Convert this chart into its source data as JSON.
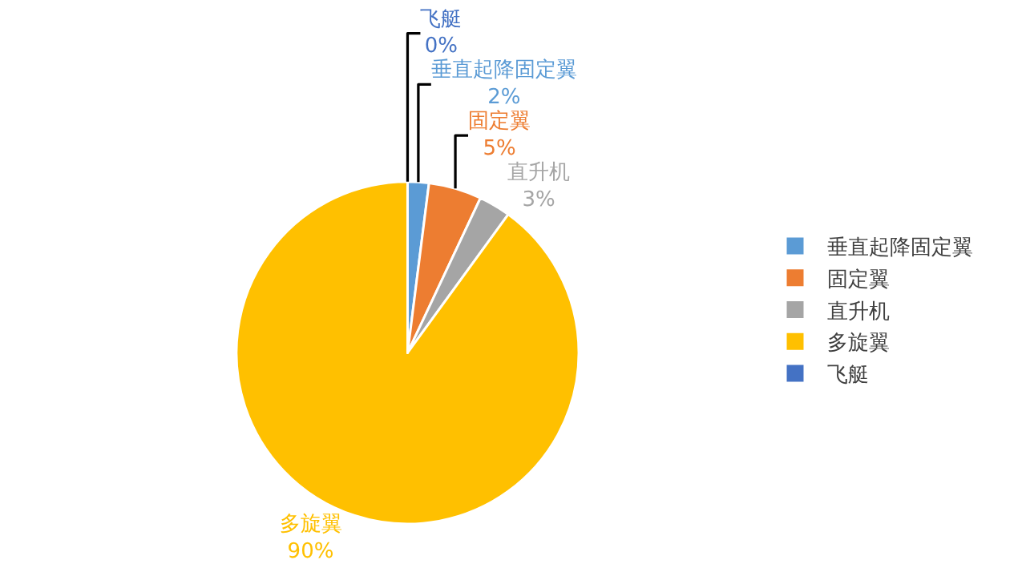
{
  "chart_data": {
    "type": "pie",
    "categories": [
      "垂直起降固定翼",
      "固定翼",
      "直升机",
      "多旋翼",
      "飞艇"
    ],
    "values": [
      2,
      5,
      3,
      90,
      0
    ],
    "colors": [
      "#5b9bd5",
      "#ed7d31",
      "#a5a5a5",
      "#ffc000",
      "#4472c4"
    ],
    "value_labels": [
      "2%",
      "5%",
      "3%",
      "90%",
      "0%"
    ],
    "legend": "right"
  }
}
